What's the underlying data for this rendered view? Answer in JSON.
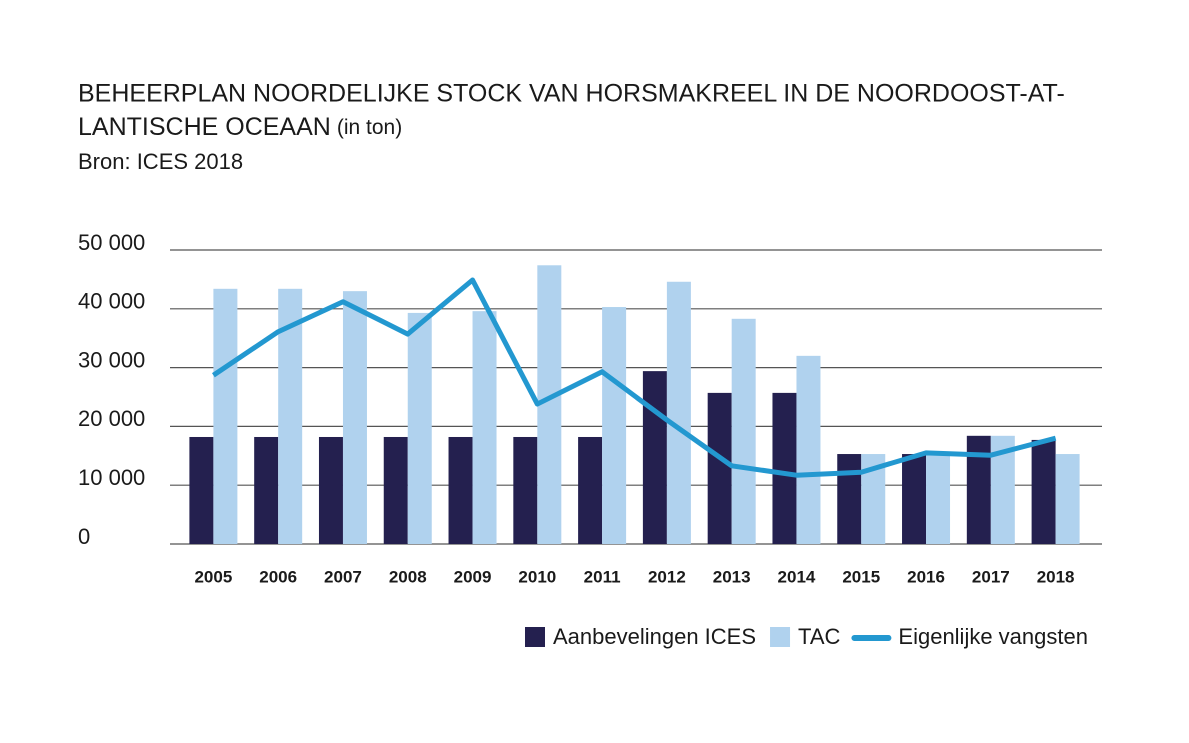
{
  "chart_data": {
    "type": "bar_line",
    "title_lines": [
      "BEHEERPLAN NOORDELIJKE STOCK VAN HORSMAKREEL IN DE NOORDOOST-AT-",
      "LANTISCHE OCEAAN"
    ],
    "title_unit": "(in ton)",
    "subtitle": "Bron: ICES 2018",
    "categories": [
      "2005",
      "2006",
      "2007",
      "2008",
      "2009",
      "2010",
      "2011",
      "2012",
      "2013",
      "2014",
      "2015",
      "2016",
      "2017",
      "2018"
    ],
    "series": [
      {
        "name": "Aanbevelingen ICES",
        "type": "bar",
        "color": "#24204f",
        "values": [
          18200,
          18200,
          18200,
          18200,
          18200,
          18200,
          18200,
          29400,
          25700,
          25700,
          15300,
          15300,
          18400,
          17700
        ]
      },
      {
        "name": "TAC",
        "type": "bar",
        "color": "#b0d2ee",
        "values": [
          43400,
          43400,
          43000,
          39300,
          39600,
          47400,
          40300,
          44600,
          38300,
          32000,
          15300,
          15300,
          18400,
          15300
        ]
      },
      {
        "name": "Eigenlijke vangsten",
        "type": "line",
        "color": "#2398d0",
        "values": [
          28700,
          36100,
          41200,
          35700,
          44900,
          23800,
          29300,
          21100,
          13300,
          11700,
          12200,
          15500,
          15100,
          18000
        ]
      }
    ],
    "ylim": [
      0,
      50000
    ],
    "yticks": [
      0,
      {
        "value": 10000,
        "label": "10 000"
      },
      {
        "value": 20000,
        "label": "20 000"
      },
      {
        "value": 30000,
        "label": "30 000"
      },
      {
        "value": 40000,
        "label": "40 000"
      },
      {
        "value": 50000,
        "label": "50 000"
      }
    ],
    "grid": true
  }
}
